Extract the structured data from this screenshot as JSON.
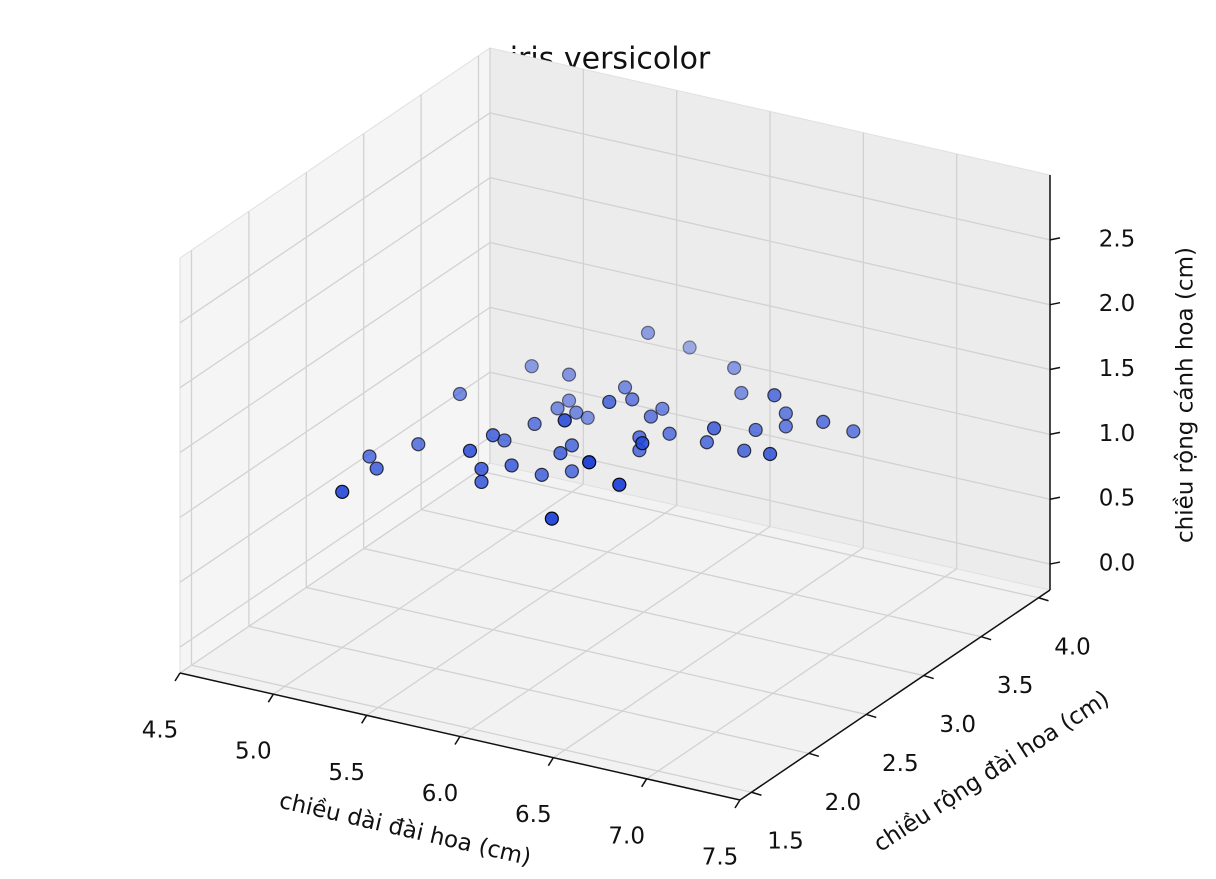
{
  "chart_data": {
    "type": "scatter3d",
    "title": "iris versicolor",
    "xlabel": "chiều dài đài hoa (cm)",
    "ylabel": "chiều rộng đài hoa (cm)",
    "zlabel": "chiều rộng cánh hoa (cm)",
    "color": "#2447d8",
    "x": [
      7.0,
      6.4,
      6.9,
      5.5,
      6.5,
      5.7,
      6.3,
      4.9,
      6.6,
      5.2,
      5.0,
      5.9,
      6.0,
      6.1,
      5.6,
      6.7,
      5.6,
      5.8,
      6.2,
      5.6,
      5.9,
      6.1,
      6.3,
      6.1,
      6.4,
      6.6,
      6.8,
      6.7,
      6.0,
      5.7,
      5.5,
      5.5,
      5.8,
      6.0,
      5.4,
      6.0,
      6.7,
      6.3,
      5.6,
      5.5,
      5.5,
      6.1,
      5.8,
      5.0,
      5.6,
      5.7,
      5.7,
      6.2,
      5.1,
      5.7
    ],
    "y": [
      3.2,
      3.2,
      3.1,
      2.3,
      2.8,
      2.8,
      3.3,
      2.4,
      2.9,
      2.7,
      2.0,
      3.0,
      2.2,
      2.9,
      2.9,
      3.1,
      3.0,
      2.7,
      2.2,
      2.5,
      3.2,
      2.8,
      2.5,
      2.8,
      2.9,
      3.0,
      2.8,
      3.0,
      2.9,
      2.6,
      2.4,
      2.4,
      2.7,
      2.7,
      3.0,
      3.4,
      3.1,
      2.3,
      3.0,
      2.5,
      2.6,
      3.0,
      2.6,
      2.3,
      2.7,
      3.0,
      2.9,
      2.9,
      2.5,
      2.8
    ],
    "z": [
      1.4,
      1.5,
      1.5,
      1.3,
      1.5,
      1.3,
      1.6,
      1.0,
      1.3,
      1.4,
      1.0,
      1.5,
      1.0,
      1.4,
      1.3,
      1.4,
      1.5,
      1.0,
      1.5,
      1.1,
      1.8,
      1.3,
      1.5,
      1.2,
      1.3,
      1.4,
      1.4,
      1.7,
      1.5,
      1.0,
      1.1,
      1.0,
      1.2,
      1.6,
      1.5,
      1.6,
      1.5,
      1.3,
      1.3,
      1.3,
      1.2,
      1.4,
      1.2,
      1.0,
      1.3,
      1.2,
      1.3,
      1.3,
      1.1,
      1.3
    ],
    "xlim": [
      4.5,
      7.5
    ],
    "ylim": [
      1.4,
      4.1
    ],
    "zlim": [
      -0.2,
      3.0
    ],
    "xticks": [
      4.5,
      {
        "value": 5,
        "label": "5.0"
      },
      5.5,
      {
        "value": 6,
        "label": "6.0"
      },
      6.5,
      {
        "value": 7,
        "label": "7.0"
      },
      7.5
    ],
    "yticks": [
      1.5,
      {
        "value": 2,
        "label": "2.0"
      },
      2.5,
      {
        "value": 3,
        "label": "3.0"
      },
      3.5,
      {
        "value": 4,
        "label": "4.0"
      }
    ],
    "zticks": [
      {
        "value": 0,
        "label": "0.0"
      },
      0.5,
      {
        "value": 1,
        "label": "1.0"
      },
      1.5,
      {
        "value": 2,
        "label": "2.0"
      },
      2.5
    ],
    "grid": true
  }
}
